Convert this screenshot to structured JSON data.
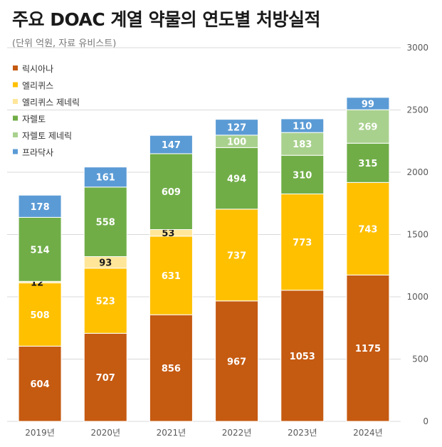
{
  "chart_data": {
    "type": "bar",
    "stacked": true,
    "title": "주요 DOAC 계열 약물의 연도별 처방실적",
    "subtitle": "(단위 억원, 자료 유비스트)",
    "categories": [
      "2019년",
      "2020년",
      "2021년",
      "2022년",
      "2023년",
      "2024년"
    ],
    "series": [
      {
        "name": "릭시아나",
        "color": "#C55A11",
        "values": [
          604,
          707,
          856,
          967,
          1053,
          1175
        ]
      },
      {
        "name": "엘리퀴스",
        "color": "#FFC000",
        "values": [
          508,
          523,
          631,
          737,
          773,
          743
        ]
      },
      {
        "name": "엘리퀴스 제네릭",
        "color": "#FFE699",
        "values": [
          12,
          93,
          53,
          null,
          null,
          null
        ]
      },
      {
        "name": "자렐토",
        "color": "#70AD47",
        "values": [
          514,
          558,
          609,
          494,
          310,
          315
        ]
      },
      {
        "name": "자렐토 제네릭",
        "color": "#A9D18E",
        "values": [
          null,
          null,
          null,
          100,
          183,
          269
        ]
      },
      {
        "name": "프라닥사",
        "color": "#5B9BD5",
        "values": [
          178,
          161,
          147,
          127,
          110,
          99
        ]
      }
    ],
    "y_axis": {
      "position": "right",
      "min": 0,
      "max": 3000,
      "ticks": [
        0,
        500,
        1000,
        1500,
        2000,
        2500,
        3000
      ]
    },
    "grid": true,
    "legend": "top-left"
  }
}
